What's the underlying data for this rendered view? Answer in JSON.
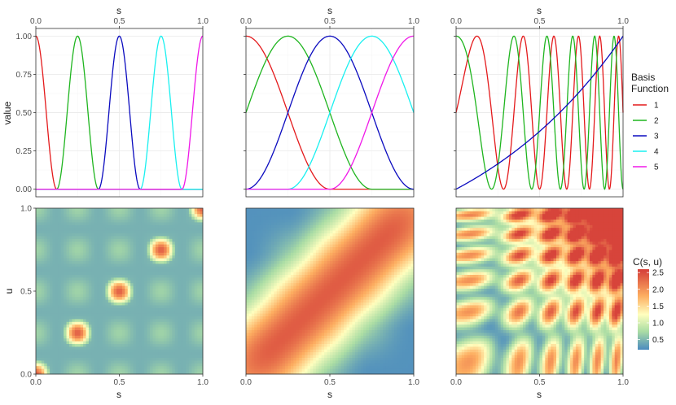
{
  "chart_data": [
    {
      "panel": "top-left",
      "type": "line",
      "title": "",
      "xlabel": "s",
      "ylabel": "value",
      "xlim": [
        0,
        1
      ],
      "ylim": [
        -0.05,
        1.05
      ],
      "x_ticks": [
        "0.0",
        "0.5",
        "1.0"
      ],
      "y_ticks": [
        "0.00",
        "0.25",
        "0.50",
        "0.75",
        "1.00"
      ],
      "basis": "bump",
      "centers": [
        0.0,
        0.25,
        0.5,
        0.75,
        1.0
      ],
      "halfwidth": 0.125,
      "series": [
        {
          "name": "1",
          "x": [
            0.0,
            0.03,
            0.06,
            0.09,
            0.125
          ],
          "y": [
            1.0,
            0.79,
            0.33,
            0.04,
            0.0
          ]
        },
        {
          "name": "2",
          "x": [
            0.125,
            0.16,
            0.2,
            0.25,
            0.3,
            0.34,
            0.375
          ],
          "y": [
            0.0,
            0.15,
            0.59,
            1.0,
            0.59,
            0.15,
            0.0
          ]
        },
        {
          "name": "3",
          "x": [
            0.375,
            0.41,
            0.45,
            0.5,
            0.55,
            0.59,
            0.625
          ],
          "y": [
            0.0,
            0.15,
            0.59,
            1.0,
            0.59,
            0.15,
            0.0
          ]
        },
        {
          "name": "4",
          "x": [
            0.625,
            0.66,
            0.7,
            0.75,
            0.8,
            0.84,
            0.875
          ],
          "y": [
            0.0,
            0.15,
            0.59,
            1.0,
            0.59,
            0.15,
            0.0
          ]
        },
        {
          "name": "5",
          "x": [
            0.875,
            0.91,
            0.94,
            0.97,
            1.0
          ],
          "y": [
            0.0,
            0.04,
            0.33,
            0.79,
            1.0
          ]
        }
      ]
    },
    {
      "panel": "top-middle",
      "type": "line",
      "xlabel": "s",
      "xlim": [
        0,
        1
      ],
      "ylim": [
        -0.05,
        1.05
      ],
      "x_ticks": [
        "0.0",
        "0.5",
        "1.0"
      ],
      "basis": "bump",
      "centers": [
        0.0,
        0.25,
        0.5,
        0.75,
        1.0
      ],
      "halfwidth": 0.5,
      "series": [
        {
          "name": "1",
          "x": [
            0.0,
            0.125,
            0.25,
            0.375,
            0.5
          ],
          "y": [
            1.0,
            0.85,
            0.5,
            0.15,
            0.0
          ]
        },
        {
          "name": "2",
          "x": [
            0.0,
            0.125,
            0.25,
            0.375,
            0.5,
            0.625,
            0.75
          ],
          "y": [
            0.5,
            0.85,
            1.0,
            0.85,
            0.5,
            0.15,
            0.0
          ]
        },
        {
          "name": "3",
          "x": [
            0.0,
            0.125,
            0.25,
            0.375,
            0.5,
            0.625,
            0.75,
            0.875,
            1.0
          ],
          "y": [
            0.0,
            0.15,
            0.5,
            0.85,
            1.0,
            0.85,
            0.5,
            0.15,
            0.0
          ]
        },
        {
          "name": "4",
          "x": [
            0.25,
            0.375,
            0.5,
            0.625,
            0.75,
            0.875,
            1.0
          ],
          "y": [
            0.0,
            0.15,
            0.5,
            0.85,
            1.0,
            0.85,
            0.5
          ]
        },
        {
          "name": "5",
          "x": [
            0.5,
            0.625,
            0.75,
            0.875,
            1.0
          ],
          "y": [
            0.0,
            0.15,
            0.5,
            0.85,
            1.0
          ]
        }
      ]
    },
    {
      "panel": "top-right",
      "type": "line",
      "xlabel": "s",
      "xlim": [
        0,
        1
      ],
      "ylim": [
        -0.05,
        1.05
      ],
      "x_ticks": [
        "0.0",
        "0.5",
        "1.0"
      ],
      "basis": "chirp",
      "series": [
        {
          "name": "1",
          "formula": "0.5 + 0.5*sin(2*pi*(1.5*s + 4*s^2))",
          "x": [
            0.0,
            0.17,
            0.35,
            0.5,
            0.59,
            0.67,
            0.76,
            0.83,
            0.9,
            0.94,
            1.0
          ],
          "y": [
            0.5,
            1.0,
            0.0,
            0.5,
            1.0,
            0.0,
            1.0,
            0.0,
            1.0,
            0.0,
            0.5
          ]
        },
        {
          "name": "2",
          "formula": "0.5 + 0.5*cos(2*pi*(1.5*s + 4*s^2))",
          "x": [
            0.0,
            0.03,
            0.29,
            0.48,
            0.62,
            0.73,
            0.82,
            0.88,
            0.95,
            1.0
          ],
          "y": [
            1.0,
            0.97,
            0.0,
            1.0,
            0.0,
            1.0,
            0.0,
            1.0,
            0.0,
            1.0
          ]
        },
        {
          "name": "3",
          "formula": "exp(s) - 1 scaled to [0, 1]",
          "x": [
            0.0,
            0.25,
            0.5,
            0.75,
            1.0
          ],
          "y": [
            0.0,
            0.17,
            0.38,
            0.65,
            1.0
          ]
        }
      ]
    },
    {
      "panel": "bottom-left",
      "type": "heatmap",
      "xlabel": "s",
      "ylabel": "u",
      "xlim": [
        0,
        1
      ],
      "ylim": [
        0,
        1
      ],
      "x_ticks": [
        "0.0",
        "0.5",
        "1.0"
      ],
      "y_ticks": [
        "0.0",
        "0.5",
        "1.0"
      ],
      "formula": "C(s,u) = sum_k phi_k(s) * phi_k(u), plus weaker off-diagonal products",
      "peaks": [
        {
          "s": 0.25,
          "u": 0.25,
          "value": 2.5
        },
        {
          "s": 0.5,
          "u": 0.5,
          "value": 2.5
        },
        {
          "s": 0.75,
          "u": 0.75,
          "value": 2.5
        },
        {
          "s": 0.0,
          "u": 0.0,
          "value": 2.5
        },
        {
          "s": 1.0,
          "u": 1.0,
          "value": 2.5
        }
      ]
    },
    {
      "panel": "bottom-middle",
      "type": "heatmap",
      "xlabel": "s",
      "xlim": [
        0,
        1
      ],
      "ylim": [
        0,
        1
      ],
      "x_ticks": [
        "0.0",
        "0.5",
        "1.0"
      ],
      "formula": "C(s,u) = sum_k phi_k(s) * phi_k(u) with wide basis — broad diagonal ridge",
      "ridge_value": 2.4,
      "corner_value": 0.3
    },
    {
      "panel": "bottom-right",
      "type": "heatmap",
      "xlabel": "s",
      "xlim": [
        0,
        1
      ],
      "ylim": [
        0,
        1
      ],
      "x_ticks": [
        "0.0",
        "0.5",
        "1.0"
      ],
      "formula": "C(s,u) = sum_k phi_k(s) * phi_k(u) with chirp basis — oscillating lattice",
      "max_value": 2.5
    }
  ],
  "legend": {
    "title_line1": "Basis",
    "title_line2": "Function",
    "placement": "right",
    "items": [
      {
        "label": "1",
        "color": "#e41a1c"
      },
      {
        "label": "2",
        "color": "#1fb51f"
      },
      {
        "label": "3",
        "color": "#0b0bbf"
      },
      {
        "label": "4",
        "color": "#19f0f0"
      },
      {
        "label": "5",
        "color": "#f018e8"
      }
    ]
  },
  "colorbar": {
    "title": "C(s, u)",
    "ticks": [
      "0.5",
      "1.0",
      "1.5",
      "2.0",
      "2.5"
    ],
    "tick_values": [
      0.5,
      1.0,
      1.5,
      2.0,
      2.5
    ],
    "range": [
      0.2,
      2.6
    ],
    "colors": [
      "#4b8bbf",
      "#abdda4",
      "#ffffbf",
      "#fdae61",
      "#d7443b"
    ]
  }
}
